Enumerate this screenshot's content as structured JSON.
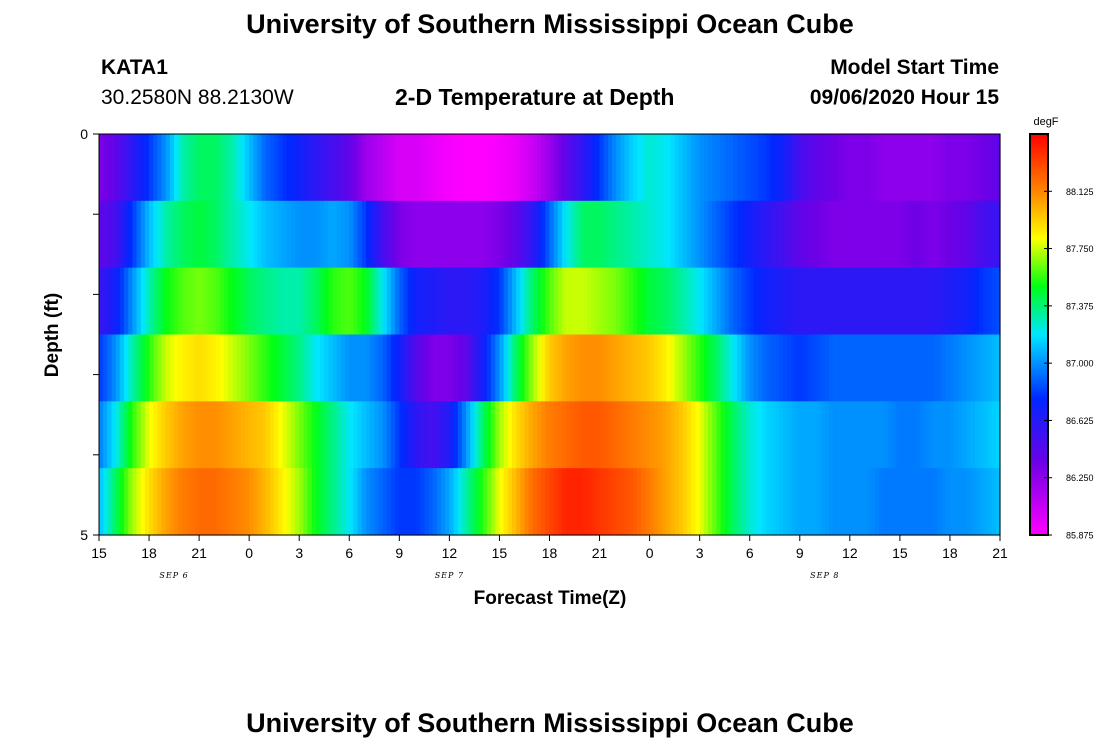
{
  "header": {
    "title": "University of Southern Mississippi Ocean Cube",
    "station": "KATA1",
    "location": "30.2580N 88.2130W",
    "plot_title": "2-D Temperature at Depth",
    "model_label": "Model Start Time",
    "model_time": "09/06/2020 Hour 15",
    "footer_title": "University of Southern Mississippi Ocean Cube"
  },
  "chart_data": {
    "type": "heatmap",
    "title": "2-D Temperature at Depth",
    "xlabel": "Forecast Time(Z)",
    "ylabel": "Depth (ft)",
    "colorbar_label": "degF",
    "colorbar_ticks": [
      "88.125",
      "87.750",
      "87.375",
      "87.000",
      "86.625",
      "86.250",
      "85.875"
    ],
    "crange": [
      85.875,
      88.5
    ],
    "x_tick_labels": [
      "15",
      "18",
      "21",
      "0",
      "3",
      "6",
      "9",
      "12",
      "15",
      "18",
      "21",
      "0",
      "3",
      "6",
      "9",
      "12",
      "15",
      "18",
      "21"
    ],
    "x_range_hours": [
      0,
      54
    ],
    "date_labels": [
      {
        "text": "SEP 6",
        "hour": 4.5
      },
      {
        "text": "SEP 7",
        "hour": 21
      },
      {
        "text": "SEP 8",
        "hour": 43.5
      }
    ],
    "y_tick_labels": [
      "0",
      "5"
    ],
    "ylim": [
      0,
      5
    ],
    "grid": false,
    "rows_depth": [
      0,
      1,
      2,
      3,
      4,
      5
    ],
    "hours": [
      0,
      1,
      2,
      3,
      4,
      5,
      6,
      7,
      8,
      9,
      10,
      11,
      12,
      13,
      14,
      15,
      16,
      17,
      18,
      19,
      20,
      21,
      22,
      23,
      24,
      25,
      26,
      27,
      28,
      29,
      30,
      31,
      32,
      33,
      34,
      35,
      36,
      37,
      38,
      39,
      40,
      41,
      42,
      43,
      44,
      45,
      46,
      47,
      48,
      49,
      50,
      51,
      52,
      53,
      54
    ],
    "values": [
      [
        86.3,
        86.4,
        86.6,
        86.8,
        87.0,
        87.3,
        87.4,
        87.4,
        87.3,
        87.1,
        86.9,
        86.8,
        86.7,
        86.6,
        86.5,
        86.4,
        86.2,
        86.1,
        86.0,
        86.0,
        85.95,
        85.9,
        85.88,
        85.88,
        85.9,
        85.95,
        86.05,
        86.2,
        86.4,
        86.6,
        86.8,
        87.0,
        87.15,
        87.25,
        87.2,
        87.1,
        87.0,
        86.95,
        86.9,
        86.85,
        86.8,
        86.7,
        86.5,
        86.4,
        86.35,
        86.3,
        86.3,
        86.25,
        86.25,
        86.25,
        86.25,
        86.3,
        86.3,
        86.35,
        86.4
      ],
      [
        86.4,
        86.5,
        86.8,
        87.1,
        87.3,
        87.4,
        87.45,
        87.4,
        87.3,
        87.2,
        87.1,
        87.05,
        87.0,
        87.0,
        87.05,
        87.0,
        86.8,
        86.5,
        86.3,
        86.25,
        86.25,
        86.25,
        86.25,
        86.25,
        86.3,
        86.4,
        86.6,
        86.9,
        87.2,
        87.4,
        87.4,
        87.35,
        87.3,
        87.25,
        87.2,
        87.1,
        87.0,
        86.9,
        86.8,
        86.7,
        86.6,
        86.5,
        86.4,
        86.35,
        86.3,
        86.3,
        86.3,
        86.3,
        86.3,
        86.35,
        86.3,
        86.35,
        86.4,
        86.5,
        86.55
      ],
      [
        86.55,
        86.7,
        87.0,
        87.3,
        87.5,
        87.6,
        87.65,
        87.6,
        87.5,
        87.4,
        87.35,
        87.3,
        87.3,
        87.4,
        87.55,
        87.6,
        87.5,
        87.2,
        86.9,
        86.7,
        86.65,
        86.6,
        86.6,
        86.65,
        86.8,
        87.1,
        87.4,
        87.6,
        87.75,
        87.75,
        87.7,
        87.65,
        87.55,
        87.45,
        87.4,
        87.3,
        87.2,
        87.05,
        86.9,
        86.8,
        86.7,
        86.65,
        86.6,
        86.6,
        86.6,
        86.6,
        86.6,
        86.6,
        86.6,
        86.6,
        86.6,
        86.65,
        86.7,
        86.8,
        86.85
      ],
      [
        86.8,
        87.0,
        87.3,
        87.55,
        87.75,
        87.85,
        87.9,
        87.85,
        87.75,
        87.65,
        87.55,
        87.45,
        87.35,
        87.2,
        87.1,
        87.0,
        87.0,
        86.9,
        86.7,
        86.45,
        86.3,
        86.3,
        86.4,
        86.7,
        87.0,
        87.4,
        87.7,
        87.95,
        88.05,
        88.1,
        88.1,
        88.05,
        88.0,
        87.95,
        87.85,
        87.7,
        87.55,
        87.4,
        87.2,
        87.0,
        86.9,
        86.85,
        86.8,
        86.85,
        86.9,
        86.9,
        86.9,
        86.9,
        86.9,
        86.9,
        86.9,
        86.95,
        87.0,
        87.05,
        87.1
      ],
      [
        86.95,
        87.2,
        87.55,
        87.8,
        87.95,
        88.05,
        88.1,
        88.1,
        88.05,
        88.0,
        87.95,
        87.8,
        87.65,
        87.5,
        87.35,
        87.2,
        87.1,
        87.0,
        86.8,
        86.6,
        86.5,
        86.65,
        87.0,
        87.4,
        87.7,
        87.9,
        88.05,
        88.15,
        88.2,
        88.25,
        88.25,
        88.2,
        88.15,
        88.1,
        88.05,
        87.95,
        87.8,
        87.6,
        87.4,
        87.25,
        87.15,
        87.1,
        87.05,
        87.05,
        87.0,
        87.0,
        87.0,
        87.0,
        86.95,
        86.95,
        87.0,
        87.0,
        87.05,
        87.1,
        87.15
      ],
      [
        87.1,
        87.4,
        87.7,
        87.9,
        88.05,
        88.15,
        88.2,
        88.2,
        88.15,
        88.1,
        88.0,
        87.85,
        87.7,
        87.5,
        87.35,
        87.2,
        87.0,
        86.9,
        86.8,
        86.8,
        86.9,
        87.05,
        87.3,
        87.55,
        87.8,
        88.0,
        88.2,
        88.3,
        88.4,
        88.4,
        88.35,
        88.3,
        88.25,
        88.15,
        88.05,
        87.95,
        87.8,
        87.6,
        87.4,
        87.25,
        87.15,
        87.1,
        87.05,
        87.05,
        87.0,
        87.0,
        87.0,
        86.95,
        86.95,
        86.95,
        86.95,
        87.0,
        87.0,
        87.05,
        87.1
      ]
    ]
  }
}
